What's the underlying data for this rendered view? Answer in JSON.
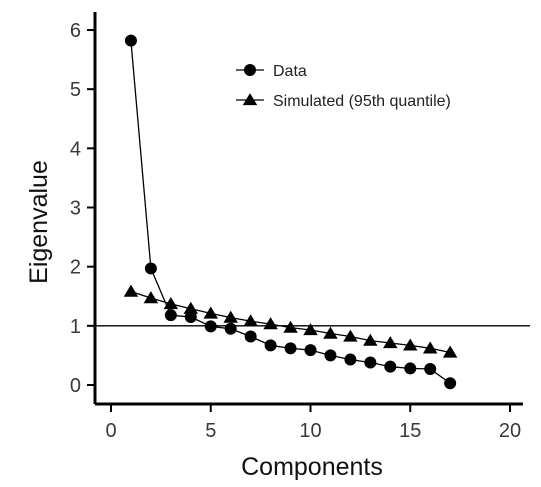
{
  "chart_data": {
    "type": "scatter",
    "xlabel": "Components",
    "ylabel": "Eigenvalue",
    "xlim": [
      0,
      20
    ],
    "ylim": [
      0,
      6
    ],
    "x_ticks": [
      0,
      5,
      10,
      15,
      20
    ],
    "y_ticks": [
      0,
      1,
      2,
      3,
      4,
      5,
      6
    ],
    "grid": false,
    "legend_position": "top-right",
    "reference_line": {
      "axis": "y",
      "value": 1
    },
    "series": [
      {
        "name": "Data",
        "marker": "circle",
        "connected": true,
        "x": [
          1,
          2,
          3,
          4,
          5,
          6,
          7,
          8,
          9,
          10,
          11,
          12,
          13,
          14,
          15,
          16,
          17
        ],
        "y": [
          5.82,
          1.97,
          1.18,
          1.15,
          0.99,
          0.95,
          0.82,
          0.67,
          0.62,
          0.59,
          0.5,
          0.43,
          0.38,
          0.31,
          0.28,
          0.27,
          0.03
        ]
      },
      {
        "name": "Simulated (95th quantile)",
        "marker": "triangle",
        "connected": true,
        "x": [
          1,
          2,
          3,
          4,
          5,
          6,
          7,
          8,
          9,
          10,
          11,
          12,
          13,
          14,
          15,
          16,
          17
        ],
        "y": [
          1.58,
          1.47,
          1.37,
          1.29,
          1.21,
          1.14,
          1.08,
          1.03,
          0.97,
          0.93,
          0.87,
          0.82,
          0.75,
          0.71,
          0.67,
          0.62,
          0.55
        ]
      }
    ]
  }
}
